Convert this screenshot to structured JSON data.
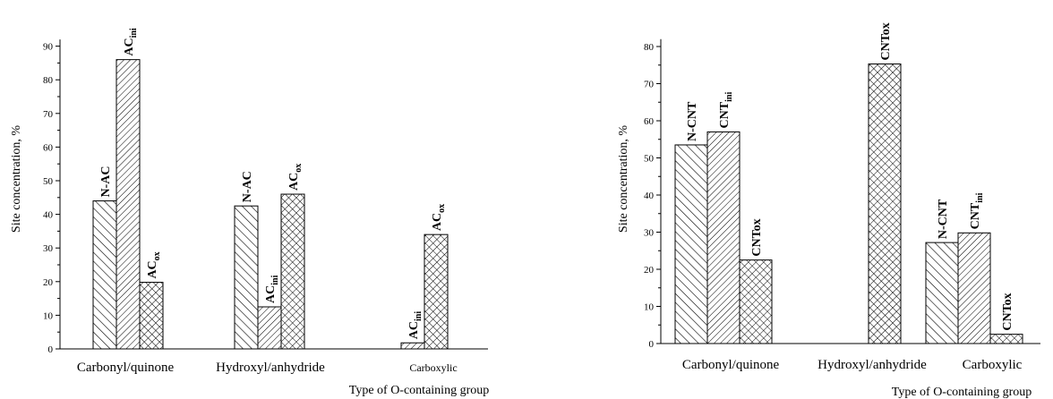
{
  "chart_data": [
    {
      "type": "bar",
      "xlabel": "Type of O-containing group",
      "ylabel": "Site concentration, %",
      "ylim": [
        0,
        92
      ],
      "yticks": [
        0,
        10,
        20,
        30,
        40,
        50,
        60,
        70,
        80,
        90
      ],
      "categories": [
        "Carbonyl/quinone",
        "Hydroxyl/anhydride",
        "Carboxylic"
      ],
      "series": [
        {
          "name": "N-AC",
          "label_main": "N-AC",
          "label_sub": "",
          "pattern": "diag-back",
          "values": [
            44,
            42.5,
            null
          ]
        },
        {
          "name": "ACini",
          "label_main": "AC",
          "label_sub": "ini",
          "pattern": "diag-fwd",
          "values": [
            86,
            12.5,
            1.8
          ]
        },
        {
          "name": "ACox",
          "label_main": "AC",
          "label_sub": "ox",
          "pattern": "cross",
          "values": [
            19.8,
            46,
            34
          ]
        }
      ],
      "grid": false,
      "legend": "none"
    },
    {
      "type": "bar",
      "xlabel": "Type of O-containing group",
      "ylabel": "Site concentration, %",
      "ylim": [
        0,
        82
      ],
      "yticks": [
        0,
        10,
        20,
        30,
        40,
        50,
        60,
        70,
        80
      ],
      "categories": [
        "Carbonyl/quinone",
        "Hydroxyl/anhydride",
        "Carboxylic"
      ],
      "series": [
        {
          "name": "N-CNT",
          "label_main": "N-CNT",
          "label_sub": "",
          "pattern": "diag-back",
          "values": [
            53.5,
            null,
            27.2
          ]
        },
        {
          "name": "CNTini",
          "label_main": "CNT",
          "label_sub": "ini",
          "pattern": "diag-fwd",
          "values": [
            57,
            null,
            29.8
          ]
        },
        {
          "name": "CNTox",
          "label_main": "CNTox",
          "label_sub": "",
          "pattern": "cross",
          "values": [
            22.5,
            75.3,
            2.5
          ]
        }
      ],
      "grid": false,
      "legend": "none"
    }
  ]
}
